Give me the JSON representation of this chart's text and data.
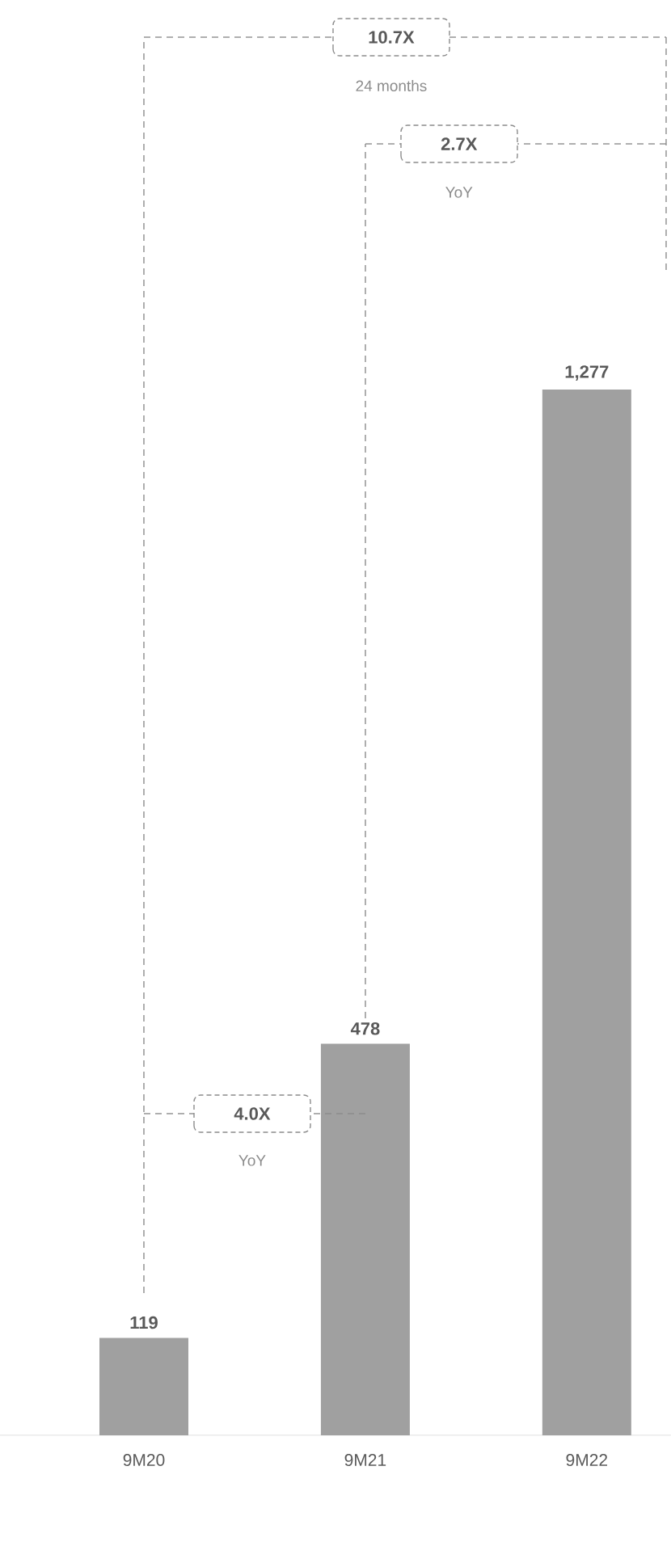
{
  "chart_data": {
    "type": "bar",
    "categories": [
      "9M20",
      "9M21",
      "9M22"
    ],
    "values": [
      119,
      478,
      1277
    ],
    "color": "#a0a0a0",
    "value_labels": [
      "119",
      "478",
      "1,277"
    ],
    "annotations": [
      "10.7X",
      "24 months",
      "2.7X",
      "YoY",
      "4.0X",
      "YoY"
    ]
  }
}
